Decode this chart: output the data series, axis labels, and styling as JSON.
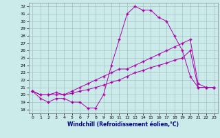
{
  "title": "",
  "xlabel": "Windchill (Refroidissement éolien,°C)",
  "background_color": "#cbeaea",
  "grid_color": "#a0b8b8",
  "line_color": "#aa00aa",
  "xlim": [
    -0.5,
    23.5
  ],
  "ylim": [
    17.5,
    32.5
  ],
  "xticks": [
    0,
    1,
    2,
    3,
    4,
    5,
    6,
    7,
    8,
    9,
    10,
    11,
    12,
    13,
    14,
    15,
    16,
    17,
    18,
    19,
    20,
    21,
    22,
    23
  ],
  "yticks": [
    18,
    19,
    20,
    21,
    22,
    23,
    24,
    25,
    26,
    27,
    28,
    29,
    30,
    31,
    32
  ],
  "curve1_x": [
    0,
    1,
    2,
    3,
    4,
    5,
    6,
    7,
    8,
    9,
    10,
    11,
    12,
    13,
    14,
    15,
    16,
    17,
    18,
    19,
    20,
    21,
    22,
    23
  ],
  "curve1_y": [
    20.5,
    19.5,
    19.0,
    19.5,
    19.5,
    19.0,
    19.0,
    18.2,
    18.2,
    20.0,
    24.0,
    27.5,
    31.0,
    32.0,
    31.5,
    31.5,
    30.5,
    30.0,
    28.0,
    26.0,
    22.5,
    21.0,
    21.0,
    21.0
  ],
  "curve2_x": [
    0,
    1,
    2,
    3,
    4,
    5,
    6,
    7,
    8,
    9,
    10,
    11,
    12,
    13,
    14,
    15,
    16,
    17,
    18,
    19,
    20,
    21,
    22,
    23
  ],
  "curve2_y": [
    20.5,
    20.0,
    20.0,
    20.0,
    20.0,
    20.2,
    20.5,
    20.7,
    21.0,
    21.3,
    21.7,
    22.0,
    22.5,
    23.0,
    23.3,
    23.7,
    24.0,
    24.3,
    24.7,
    25.0,
    26.0,
    21.0,
    21.0,
    21.0
  ],
  "curve3_x": [
    0,
    1,
    2,
    3,
    4,
    5,
    6,
    7,
    8,
    9,
    10,
    11,
    12,
    13,
    14,
    15,
    16,
    17,
    18,
    19,
    20,
    21,
    22,
    23
  ],
  "curve3_y": [
    20.5,
    20.0,
    20.0,
    20.3,
    20.0,
    20.5,
    21.0,
    21.5,
    22.0,
    22.5,
    23.0,
    23.5,
    23.5,
    24.0,
    24.5,
    25.0,
    25.5,
    26.0,
    26.5,
    27.0,
    27.5,
    21.5,
    21.0,
    21.0
  ],
  "tick_fontsize": 4.5,
  "xlabel_fontsize": 5.5
}
